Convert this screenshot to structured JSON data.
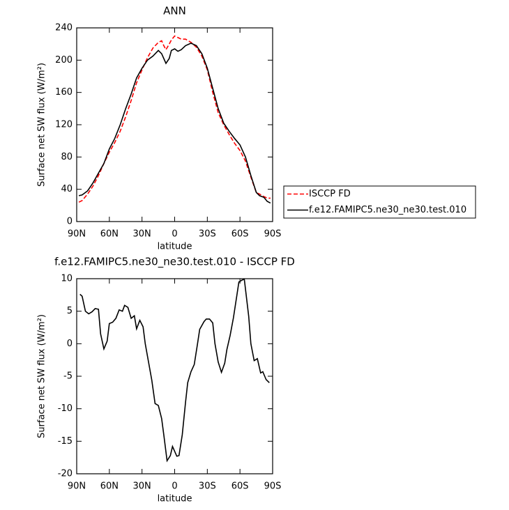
{
  "chart_data": [
    {
      "type": "line",
      "title": "ANN",
      "x_label": "latitude",
      "y_label": "Surface net SW flux (W/m²)",
      "x": [
        88,
        85,
        80,
        75,
        70,
        65,
        60,
        55,
        50,
        45,
        40,
        35,
        30,
        25,
        20,
        15,
        12,
        10,
        8,
        5,
        3,
        0,
        -3,
        -6,
        -10,
        -15,
        -20,
        -25,
        -30,
        -35,
        -40,
        -45,
        -50,
        -55,
        -60,
        -65,
        -70,
        -75,
        -78,
        -82,
        -85,
        -88
      ],
      "series": [
        {
          "name": "ISCCP FD",
          "color": "#ff0000",
          "line_style": "dashed",
          "values": [
            24,
            26,
            34,
            44,
            57,
            72,
            86,
            98,
            112,
            130,
            150,
            172,
            188,
            203,
            215,
            222,
            224,
            218,
            213,
            220,
            225,
            230,
            228,
            226,
            226,
            222,
            216,
            205,
            188,
            160,
            135,
            120,
            108,
            97,
            88,
            75,
            55,
            36,
            34,
            31,
            29,
            29
          ]
        },
        {
          "name": "f.e12.FAMIPC5.ne30_ne30.test.010",
          "color": "#000000",
          "line_style": "solid",
          "values": [
            32,
            33,
            38,
            48,
            60,
            72,
            90,
            103,
            120,
            140,
            158,
            178,
            190,
            200,
            205,
            212,
            208,
            202,
            196,
            202,
            212,
            214,
            211,
            213,
            218,
            221,
            218,
            208,
            190,
            165,
            140,
            122,
            112,
            103,
            95,
            80,
            57,
            36,
            32,
            30,
            25,
            23
          ]
        }
      ],
      "xlim": [
        90,
        -90
      ],
      "xticks": [
        {
          "value": 90,
          "label": "90N"
        },
        {
          "value": 60,
          "label": "60N"
        },
        {
          "value": 30,
          "label": "30N"
        },
        0,
        {
          "value": -30,
          "label": "30S"
        },
        {
          "value": -60,
          "label": "60S"
        },
        {
          "value": -90,
          "label": "90S"
        }
      ],
      "ylim": [
        0,
        240
      ],
      "yticks": [
        0,
        40,
        80,
        120,
        160,
        200,
        240
      ],
      "legend": "right"
    },
    {
      "type": "line",
      "title": "f.e12.FAMIPC5.ne30_ne30.test.010 - ISCCP FD",
      "x_label": "latitude",
      "y_label": "Surface net SW flux (W/m²)",
      "x": [
        87,
        85,
        82,
        79,
        76,
        73,
        70,
        68,
        65,
        62,
        60,
        57,
        54,
        51,
        48,
        46,
        43,
        40,
        37,
        35,
        32,
        29,
        27,
        24,
        21,
        18,
        15,
        12,
        10,
        7,
        4,
        2,
        -2,
        -4,
        -7,
        -10,
        -12,
        -15,
        -18,
        -21,
        -23,
        -27,
        -29,
        -32,
        -35,
        -37,
        -40,
        -43,
        -46,
        -48,
        -51,
        -54,
        -57,
        -59,
        -62,
        -64,
        -68,
        -70,
        -73,
        -76,
        -79,
        -81,
        -84,
        -87
      ],
      "series": [
        {
          "color": "#000000",
          "line_style": "solid",
          "values": [
            7.6,
            7.3,
            5,
            4.6,
            4.9,
            5.4,
            5.3,
            1.5,
            -0.8,
            0.4,
            3.1,
            3.3,
            3.9,
            5.2,
            5,
            5.9,
            5.6,
            3.9,
            4.3,
            2.3,
            3.6,
            2.6,
            0,
            -2.8,
            -5.6,
            -9.2,
            -9.5,
            -11.5,
            -14,
            -18,
            -17.2,
            -15.8,
            -17.3,
            -17.2,
            -14,
            -9,
            -6,
            -4.3,
            -3.2,
            0,
            2.2,
            3.4,
            3.8,
            3.8,
            3.2,
            0,
            -2.8,
            -4.4,
            -3,
            -0.9,
            1.3,
            4,
            7.3,
            9.5,
            9.8,
            9.9,
            4.2,
            0,
            -2.6,
            -2.3,
            -4.5,
            -4.3,
            -5.5,
            -6
          ]
        }
      ],
      "xlim": [
        90,
        -90
      ],
      "xticks": [
        {
          "value": 90,
          "label": "90N"
        },
        {
          "value": 60,
          "label": "60N"
        },
        {
          "value": 30,
          "label": "30N"
        },
        0,
        {
          "value": -30,
          "label": "30S"
        },
        {
          "value": -60,
          "label": "60S"
        },
        {
          "value": -90,
          "label": "90S"
        }
      ],
      "ylim": [
        -20,
        10
      ],
      "yticks": [
        -20,
        -15,
        -10,
        -5,
        0,
        5,
        10
      ]
    }
  ]
}
